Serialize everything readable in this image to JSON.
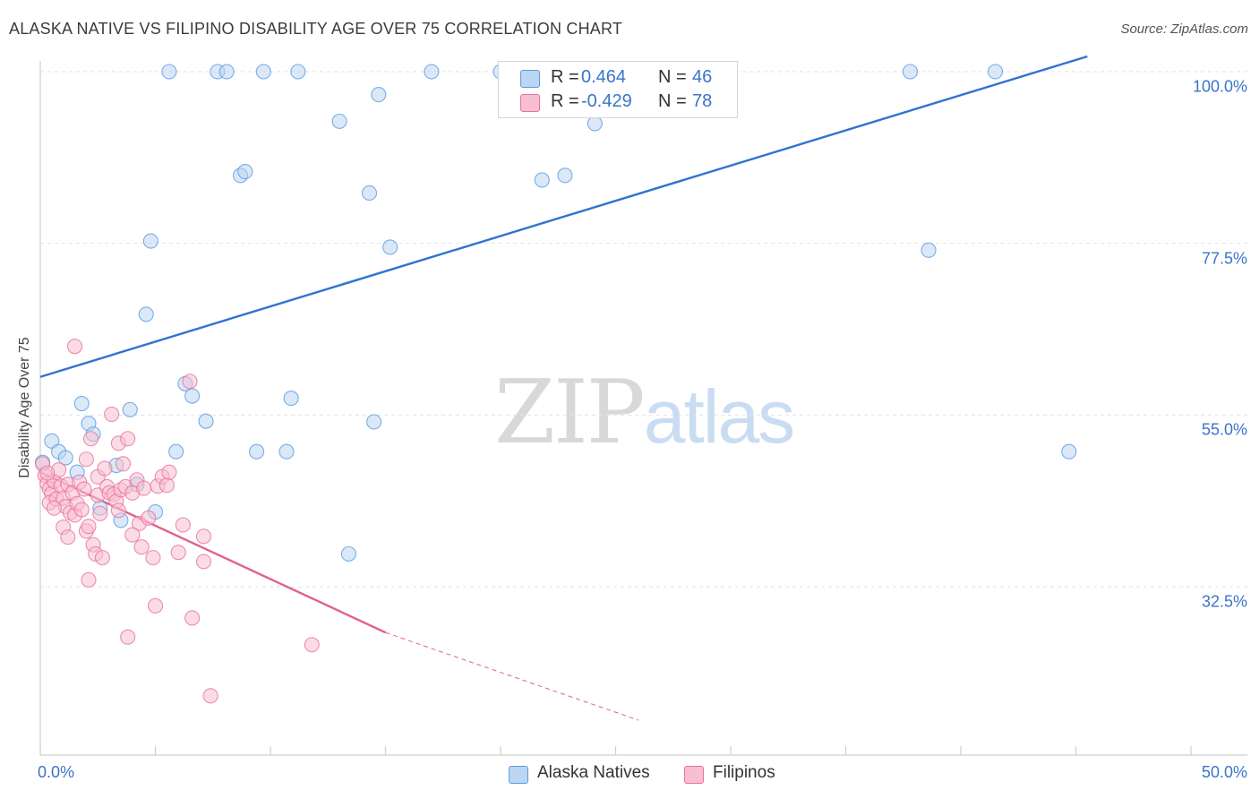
{
  "chart_data": {
    "type": "scatter",
    "title": "ALASKA NATIVE VS FILIPINO DISABILITY AGE OVER 75 CORRELATION CHART",
    "source": "Source: ZipAtlas.com",
    "xlabel": "",
    "ylabel": "Disability Age Over 75",
    "xlim": [
      0,
      50
    ],
    "ylim": [
      15,
      102
    ],
    "x_tick_labels": [
      "0.0%",
      "50.0%"
    ],
    "y_ticks": [
      {
        "value": 100,
        "label": "100.0%"
      },
      {
        "value": 77.5,
        "label": "77.5%"
      },
      {
        "value": 55,
        "label": "55.0%"
      },
      {
        "value": 32.5,
        "label": "32.5%"
      }
    ],
    "watermark": {
      "zip": "ZIP",
      "atlas": "atlas"
    },
    "legend": [
      {
        "label": "R =",
        "r_value": "0.464",
        "n_label": "N =",
        "n_value": "46"
      },
      {
        "label": "R =",
        "r_value": "-0.429",
        "n_label": "N =",
        "n_value": "78"
      }
    ],
    "series": [
      {
        "name": "Alaska Natives",
        "color": "#5b9be0",
        "fill": "#bcd5f3",
        "trend": {
          "x": [
            0,
            45.5
          ],
          "y": [
            60,
            102
          ]
        },
        "points": [
          [
            0.1,
            48.8
          ],
          [
            0.5,
            51.6
          ],
          [
            0.8,
            50.2
          ],
          [
            1.1,
            49.4
          ],
          [
            1.6,
            47.5
          ],
          [
            1.8,
            56.5
          ],
          [
            2.1,
            53.9
          ],
          [
            2.3,
            52.5
          ],
          [
            2.6,
            42.8
          ],
          [
            3.3,
            48.4
          ],
          [
            3.5,
            41.2
          ],
          [
            3.9,
            55.7
          ],
          [
            4.2,
            45.9
          ],
          [
            5.0,
            42.3
          ],
          [
            4.6,
            68.2
          ],
          [
            4.8,
            77.8
          ],
          [
            5.6,
            100
          ],
          [
            5.9,
            50.2
          ],
          [
            6.3,
            59.1
          ],
          [
            6.6,
            57.5
          ],
          [
            7.2,
            54.2
          ],
          [
            7.7,
            100
          ],
          [
            8.1,
            100
          ],
          [
            8.7,
            86.4
          ],
          [
            8.9,
            86.9
          ],
          [
            9.4,
            50.2
          ],
          [
            9.7,
            100
          ],
          [
            10.7,
            50.2
          ],
          [
            10.9,
            57.2
          ],
          [
            11.2,
            100
          ],
          [
            13.0,
            93.5
          ],
          [
            13.4,
            36.8
          ],
          [
            14.3,
            84.1
          ],
          [
            14.5,
            54.1
          ],
          [
            14.7,
            97.0
          ],
          [
            15.2,
            77.0
          ],
          [
            17.0,
            100
          ],
          [
            20.0,
            100
          ],
          [
            21.8,
            85.8
          ],
          [
            22.8,
            86.4
          ],
          [
            24.1,
            93.2
          ],
          [
            37.8,
            100
          ],
          [
            38.6,
            76.6
          ],
          [
            41.5,
            100
          ],
          [
            44.7,
            50.2
          ]
        ]
      },
      {
        "name": "Filipinos",
        "color": "#e8739b",
        "fill": "#f7bfd1",
        "trend": {
          "x": [
            0,
            15
          ],
          "y": [
            47.5,
            26.5
          ]
        },
        "trend_dashed": {
          "x": [
            15,
            26
          ],
          "y": [
            26.5,
            15
          ]
        },
        "points": [
          [
            0.1,
            48.6
          ],
          [
            0.2,
            47.1
          ],
          [
            0.3,
            46.0
          ],
          [
            0.4,
            45.3
          ],
          [
            0.5,
            44.7
          ],
          [
            0.4,
            43.5
          ],
          [
            0.6,
            46.3
          ],
          [
            0.7,
            44.0
          ],
          [
            0.8,
            47.8
          ],
          [
            0.9,
            45.7
          ],
          [
            1.0,
            44.1
          ],
          [
            1.0,
            40.3
          ],
          [
            1.1,
            43.0
          ],
          [
            1.2,
            45.9
          ],
          [
            1.3,
            42.2
          ],
          [
            1.4,
            44.8
          ],
          [
            1.5,
            41.9
          ],
          [
            1.6,
            43.4
          ],
          [
            1.7,
            46.2
          ],
          [
            1.8,
            42.6
          ],
          [
            1.9,
            45.3
          ],
          [
            2.0,
            39.8
          ],
          [
            2.1,
            40.4
          ],
          [
            2.1,
            33.4
          ],
          [
            2.2,
            51.9
          ],
          [
            2.3,
            38.0
          ],
          [
            2.4,
            36.8
          ],
          [
            2.5,
            46.9
          ],
          [
            2.5,
            44.5
          ],
          [
            2.6,
            42.1
          ],
          [
            2.7,
            36.3
          ],
          [
            2.8,
            48.0
          ],
          [
            2.9,
            45.6
          ],
          [
            3.0,
            44.8
          ],
          [
            3.1,
            55.1
          ],
          [
            3.2,
            44.6
          ],
          [
            3.3,
            43.7
          ],
          [
            3.4,
            51.3
          ],
          [
            3.5,
            45.2
          ],
          [
            3.6,
            48.6
          ],
          [
            3.7,
            45.6
          ],
          [
            3.8,
            51.9
          ],
          [
            3.8,
            25.9
          ],
          [
            4.0,
            44.8
          ],
          [
            4.2,
            46.5
          ],
          [
            4.3,
            40.8
          ],
          [
            4.4,
            37.7
          ],
          [
            4.5,
            45.4
          ],
          [
            4.7,
            41.5
          ],
          [
            4.9,
            36.3
          ],
          [
            5.0,
            30.0
          ],
          [
            5.1,
            45.7
          ],
          [
            5.3,
            46.9
          ],
          [
            5.5,
            45.8
          ],
          [
            5.6,
            47.5
          ],
          [
            6.0,
            37.0
          ],
          [
            6.2,
            40.6
          ],
          [
            6.5,
            59.4
          ],
          [
            6.6,
            28.4
          ],
          [
            7.1,
            39.1
          ],
          [
            7.1,
            35.8
          ],
          [
            7.4,
            18.2
          ],
          [
            11.8,
            24.9
          ],
          [
            1.5,
            64.0
          ],
          [
            0.3,
            47.4
          ],
          [
            0.6,
            42.8
          ],
          [
            1.2,
            39.0
          ],
          [
            2.0,
            49.2
          ],
          [
            3.4,
            42.5
          ],
          [
            4.0,
            39.3
          ]
        ]
      }
    ]
  },
  "bottom_legend": [
    {
      "label": "Alaska Natives",
      "fill": "#bcd5f3",
      "border": "#5b9be0"
    },
    {
      "label": "Filipinos",
      "fill": "#f7bfd1",
      "border": "#e8739b"
    }
  ]
}
